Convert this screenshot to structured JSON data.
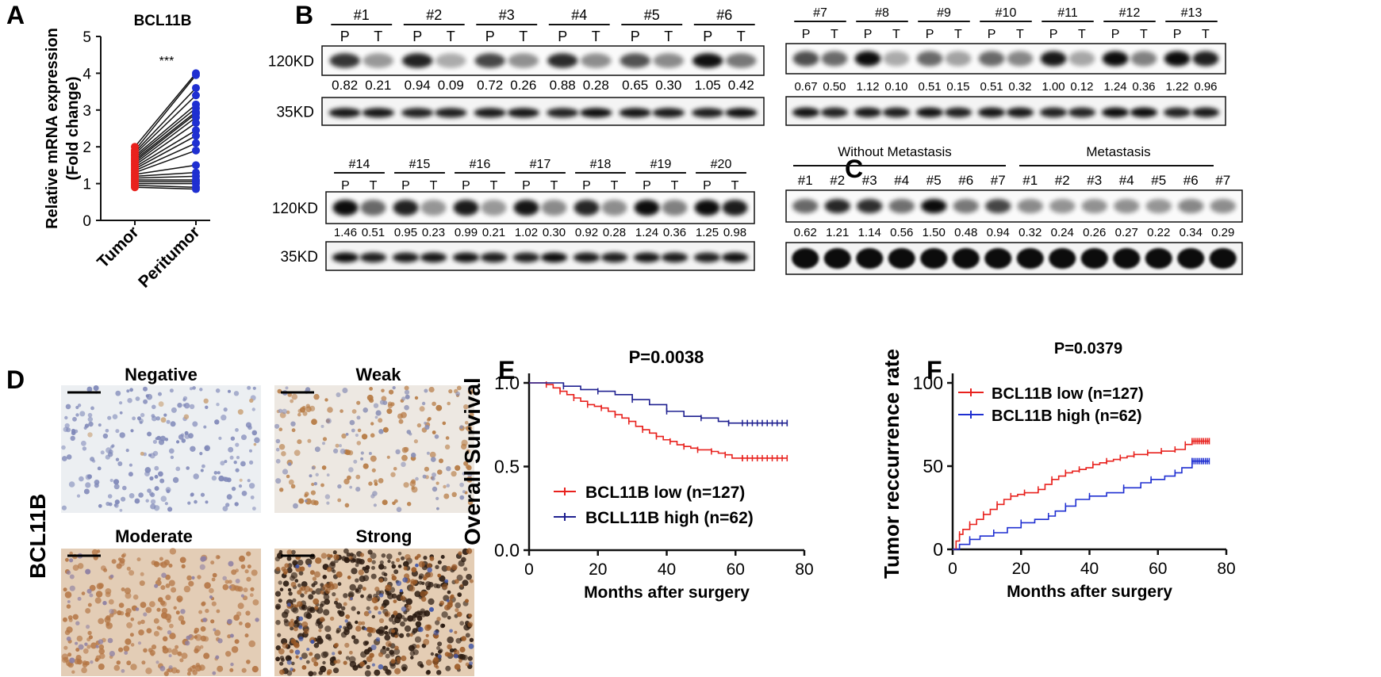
{
  "panel_letters": {
    "a": "A",
    "b": "B",
    "c": "C",
    "d": "D",
    "e": "E",
    "f": "F"
  },
  "chart_data": [
    {
      "panel": "A",
      "type": "scatter",
      "title": "BCL11B",
      "ylabel": "Relative mRNA expression\n(Fold change)",
      "ylim": [
        0,
        5
      ],
      "yticks": [
        0,
        1,
        2,
        3,
        4,
        5
      ],
      "categories": [
        "Tumor",
        "Peritumor"
      ],
      "significance": "***",
      "series": [
        {
          "name": "Tumor",
          "color": "#e8211d",
          "values": [
            2.0,
            1.9,
            1.85,
            1.8,
            1.75,
            1.7,
            1.65,
            1.6,
            1.55,
            1.5,
            1.45,
            1.4,
            1.35,
            1.3,
            1.25,
            1.2,
            1.15,
            1.1,
            1.05,
            1.0,
            0.95,
            0.9
          ]
        },
        {
          "name": "Peritumor",
          "color": "#1f2fd1",
          "values": [
            4.0,
            3.95,
            3.6,
            3.4,
            3.15,
            3.05,
            2.95,
            2.9,
            2.8,
            2.65,
            2.45,
            2.3,
            2.1,
            1.9,
            1.5,
            1.3,
            1.2,
            1.1,
            1.05,
            1.0,
            0.9,
            0.85
          ]
        }
      ]
    },
    {
      "panel": "E",
      "type": "line",
      "title": "P=0.0038",
      "xlabel": "Months after surgery",
      "ylabel": "Overall Survival",
      "xlim": [
        0,
        80
      ],
      "ylim": [
        0,
        1.0
      ],
      "xticks": [
        0,
        20,
        40,
        60,
        80
      ],
      "yticks": [
        0.0,
        0.5,
        1.0
      ],
      "ytick_labels": [
        "0.0",
        "0.5",
        "1.0"
      ],
      "legend": "bottom-center",
      "series": [
        {
          "name": "BCL11B low (n=127)",
          "color": "#e8211d",
          "x": [
            0,
            3,
            5,
            7,
            9,
            11,
            13,
            15,
            17,
            19,
            21,
            23,
            25,
            27,
            29,
            31,
            33,
            35,
            37,
            39,
            41,
            43,
            45,
            47,
            49,
            51,
            53,
            55,
            57,
            59,
            62,
            75
          ],
          "y": [
            1.0,
            1.0,
            0.99,
            0.97,
            0.95,
            0.93,
            0.91,
            0.89,
            0.87,
            0.86,
            0.85,
            0.83,
            0.81,
            0.79,
            0.77,
            0.74,
            0.72,
            0.7,
            0.68,
            0.66,
            0.65,
            0.63,
            0.62,
            0.61,
            0.6,
            0.6,
            0.59,
            0.58,
            0.57,
            0.55,
            0.55,
            0.55
          ]
        },
        {
          "name": "BCLL11B high (n=62)",
          "color": "#1f2090",
          "x": [
            0,
            3,
            10,
            15,
            20,
            25,
            30,
            35,
            40,
            45,
            50,
            55,
            58,
            62,
            75
          ],
          "y": [
            1.0,
            1.0,
            0.98,
            0.96,
            0.95,
            0.93,
            0.9,
            0.87,
            0.83,
            0.8,
            0.79,
            0.77,
            0.76,
            0.76,
            0.76
          ]
        }
      ]
    },
    {
      "panel": "F",
      "type": "line",
      "title": "P=0.0379",
      "xlabel": "Months after surgery",
      "ylabel": "Tumor reccurrence rate",
      "xlim": [
        0,
        80
      ],
      "ylim": [
        0,
        100
      ],
      "xticks": [
        0,
        20,
        40,
        60,
        80
      ],
      "yticks": [
        0,
        50,
        100
      ],
      "legend": "top-left",
      "series": [
        {
          "name": "BCL11B low (n=127)",
          "color": "#e8211d",
          "x": [
            0,
            1,
            2,
            3,
            5,
            7,
            9,
            11,
            13,
            15,
            17,
            19,
            21,
            23,
            25,
            27,
            29,
            31,
            33,
            35,
            37,
            39,
            41,
            43,
            45,
            47,
            49,
            51,
            53,
            55,
            57,
            59,
            61,
            63,
            65,
            67,
            68,
            70,
            75
          ],
          "y": [
            0,
            5,
            9,
            12,
            15,
            18,
            21,
            24,
            27,
            30,
            32,
            33,
            34,
            34,
            36,
            39,
            42,
            44,
            46,
            47,
            48,
            49,
            51,
            52,
            53,
            54,
            55,
            56,
            57,
            57,
            58,
            58,
            59,
            59,
            60,
            60,
            63,
            65,
            65
          ]
        },
        {
          "name": "BCL11B high (n=62)",
          "color": "#1f2fd1",
          "x": [
            0,
            2,
            5,
            8,
            12,
            16,
            20,
            24,
            28,
            30,
            33,
            36,
            40,
            45,
            50,
            55,
            58,
            62,
            65,
            67,
            70,
            75
          ],
          "y": [
            0,
            3,
            6,
            8,
            10,
            13,
            16,
            18,
            20,
            23,
            26,
            30,
            32,
            34,
            37,
            40,
            42,
            44,
            46,
            49,
            53,
            53
          ]
        }
      ]
    }
  ],
  "western_b_top_left": {
    "samples": [
      "#1",
      "#2",
      "#3",
      "#4",
      "#5",
      "#6"
    ],
    "lane_labels": [
      "P",
      "T"
    ],
    "mw_top": "120KD",
    "mw_bottom": "35KD",
    "values": [
      "0.82",
      "0.21",
      "0.94",
      "0.09",
      "0.72",
      "0.26",
      "0.88",
      "0.28",
      "0.65",
      "0.30",
      "1.05",
      "0.42"
    ]
  },
  "western_b_top_right": {
    "samples": [
      "#7",
      "#8",
      "#9",
      "#10",
      "#11",
      "#12",
      "#13"
    ],
    "lane_labels": [
      "P",
      "T"
    ],
    "values": [
      "0.67",
      "0.50",
      "1.12",
      "0.10",
      "0.51",
      "0.15",
      "0.51",
      "0.32",
      "1.00",
      "0.12",
      "1.24",
      "0.36",
      "1.22",
      "0.96"
    ]
  },
  "western_b_bottom": {
    "samples": [
      "#14",
      "#15",
      "#16",
      "#17",
      "#18",
      "#19",
      "#20"
    ],
    "lane_labels": [
      "P",
      "T"
    ],
    "mw_top": "120KD",
    "mw_bottom": "35KD",
    "values": [
      "1.46",
      "0.51",
      "0.95",
      "0.23",
      "0.99",
      "0.21",
      "1.02",
      "0.30",
      "0.92",
      "0.28",
      "1.24",
      "0.36",
      "1.25",
      "0.98"
    ]
  },
  "western_c": {
    "group_without": "Without Metastasis",
    "group_with": "Metastasis",
    "lanes": [
      "#1",
      "#2",
      "#3",
      "#4",
      "#5",
      "#6",
      "#7",
      "#1",
      "#2",
      "#3",
      "#4",
      "#5",
      "#6",
      "#7"
    ],
    "values": [
      "0.62",
      "1.21",
      "1.14",
      "0.56",
      "1.50",
      "0.48",
      "0.94",
      "0.32",
      "0.24",
      "0.26",
      "0.27",
      "0.22",
      "0.34",
      "0.29"
    ]
  },
  "ihc": {
    "row_label": "BCL11B",
    "titles": [
      "Negative",
      "Weak",
      "Moderate",
      "Strong"
    ]
  }
}
